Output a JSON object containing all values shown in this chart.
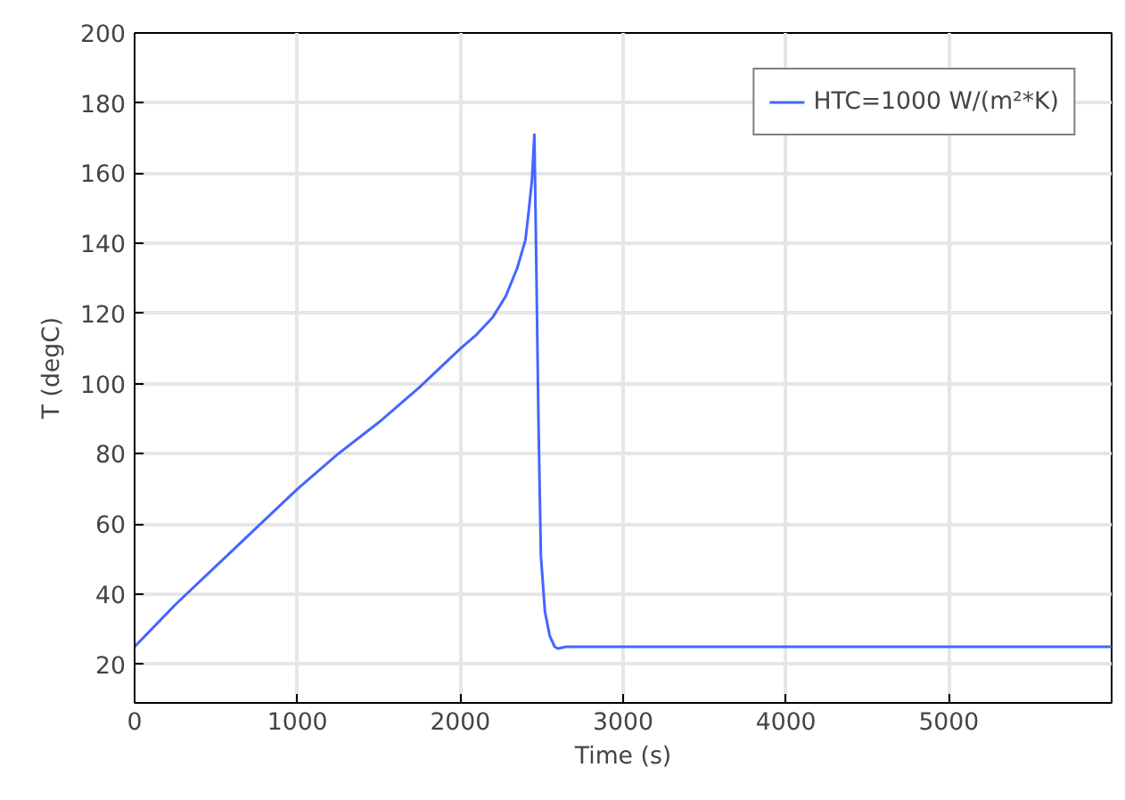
{
  "chart_data": {
    "type": "line",
    "xlabel": "Time (s)",
    "ylabel": "T (degC)",
    "xlim": [
      0,
      6000
    ],
    "ylim": [
      9,
      200
    ],
    "xticks": [
      0,
      1000,
      2000,
      3000,
      4000,
      5000
    ],
    "yticks": [
      20,
      40,
      60,
      80,
      100,
      120,
      140,
      160,
      180,
      200
    ],
    "grid": true,
    "legend": "top right",
    "line_style": "solid",
    "series": [
      {
        "name": "HTC=1000 W/(m²*K)",
        "color": "#4466ff",
        "x": [
          0,
          250,
          500,
          750,
          1000,
          1250,
          1500,
          1750,
          2000,
          2100,
          2200,
          2280,
          2350,
          2400,
          2420,
          2440,
          2455,
          2465,
          2480,
          2495,
          2520,
          2550,
          2580,
          2600,
          2650,
          2800,
          3500,
          4500,
          6000
        ],
        "values": [
          25,
          37,
          48,
          59,
          70,
          80,
          89,
          99,
          110,
          114,
          119,
          125,
          133,
          141,
          149,
          158,
          171,
          140,
          90,
          51,
          35,
          28,
          25,
          24.5,
          25,
          25,
          25,
          25,
          25
        ]
      }
    ]
  }
}
